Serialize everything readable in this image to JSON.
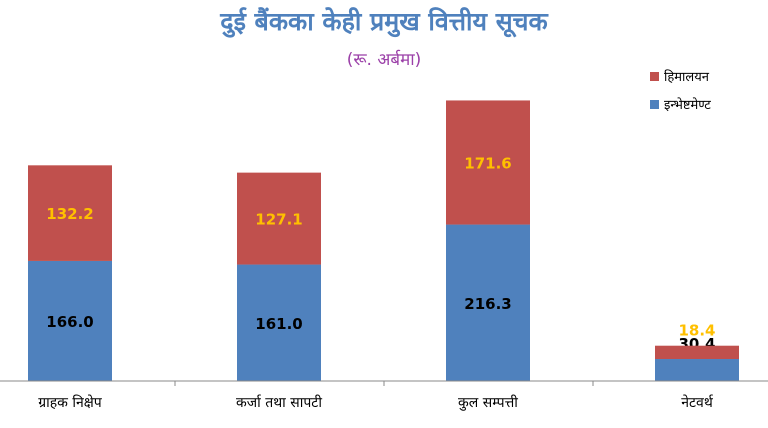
{
  "chart_data": {
    "type": "bar",
    "stacked": true,
    "title": "दुई बैंकका केही प्रमुख वित्तीय सूचक",
    "subtitle": "(रू. अर्बमा)",
    "categories": [
      "ग्राहक निक्षेप",
      "कर्जा तथा सापटी",
      "कुल सम्पत्ती",
      "नेटवर्थ"
    ],
    "series": [
      {
        "name": "इन्भेष्टमेण्ट",
        "color": "#4f81bd",
        "values": [
          166.0,
          161.0,
          216.3,
          30.4
        ],
        "labels": [
          "166.0",
          "161.0",
          "216.3",
          "30.4"
        ],
        "label_color": "#000000"
      },
      {
        "name": "हिमालयन",
        "color": "#c0504d",
        "values": [
          132.2,
          127.1,
          171.6,
          18.4
        ],
        "labels": [
          "132.2",
          "127.1",
          "171.6",
          "18.4"
        ],
        "label_color": "#ffc000"
      }
    ],
    "legend_order": [
      1,
      0
    ],
    "legend_position": "top-right",
    "ylim": [
      0,
      430
    ],
    "grid": false
  }
}
